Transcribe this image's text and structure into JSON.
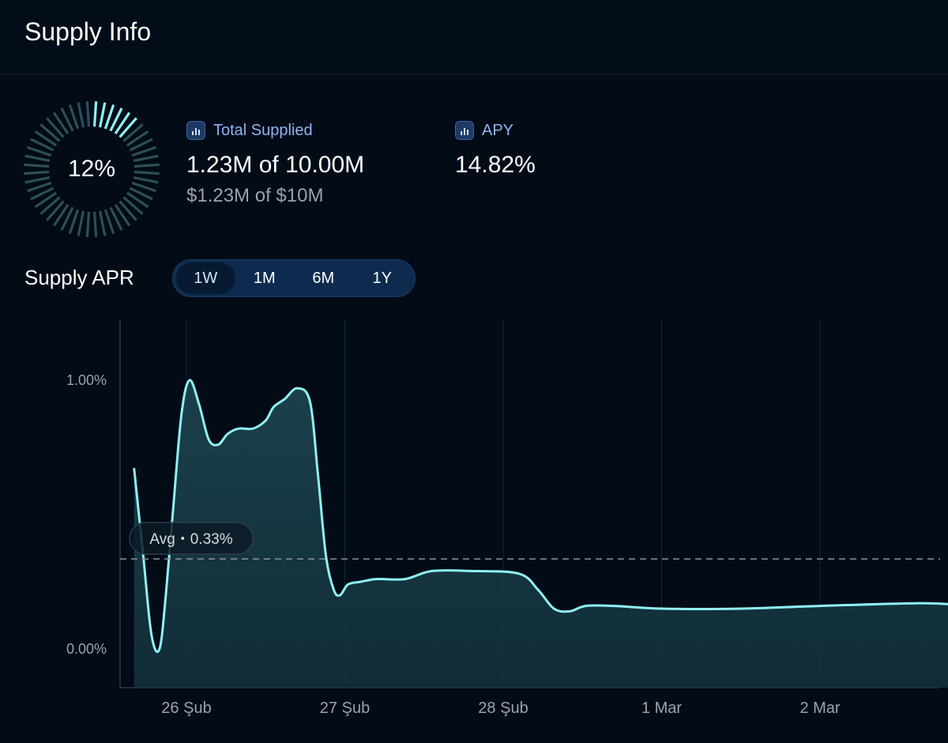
{
  "header": {
    "title": "Supply Info"
  },
  "gauge": {
    "percent_label": "12%",
    "fraction": 0.12,
    "color_active": "#8ff0f5",
    "color_inactive": "#2c4f57"
  },
  "stats": {
    "total_supplied": {
      "label": "Total Supplied",
      "value": "1.23M of 10.00M",
      "sub": "$1.23M of $10M"
    },
    "apy": {
      "label": "APY",
      "value": "14.82%"
    }
  },
  "supply_apr": {
    "title": "Supply APR",
    "tabs": [
      {
        "label": "1W",
        "active": true
      },
      {
        "label": "1M",
        "active": false
      },
      {
        "label": "6M",
        "active": false
      },
      {
        "label": "1Y",
        "active": false
      }
    ]
  },
  "chart_data": {
    "type": "area",
    "x_unit": "day",
    "x_ticks": [
      {
        "label": "26 Şub",
        "x": 0
      },
      {
        "label": "27 Şub",
        "x": 1
      },
      {
        "label": "28 Şub",
        "x": 2
      },
      {
        "label": "1 Mar",
        "x": 3
      },
      {
        "label": "2 Mar",
        "x": 4
      }
    ],
    "xlim": [
      -0.34,
      4.9
    ],
    "y_ticks": [
      {
        "label": "1.00%",
        "value": 1.0
      },
      {
        "label": "0.00%",
        "value": 0.0
      }
    ],
    "ylim": [
      -0.14,
      1.23
    ],
    "x": [
      -0.33,
      -0.27,
      -0.22,
      -0.17,
      -0.13,
      -0.08,
      -0.03,
      0.02,
      0.08,
      0.14,
      0.2,
      0.26,
      0.33,
      0.42,
      0.5,
      0.55,
      0.62,
      0.7,
      0.78,
      0.83,
      0.88,
      0.93,
      0.97,
      1.02,
      1.1,
      1.2,
      1.38,
      1.55,
      1.8,
      2.1,
      2.22,
      2.32,
      2.42,
      2.52,
      2.7,
      3.0,
      3.5,
      4.0,
      4.6,
      4.87
    ],
    "y": [
      0.67,
      0.33,
      0.05,
      0.0,
      0.2,
      0.55,
      0.88,
      1.0,
      0.91,
      0.78,
      0.76,
      0.8,
      0.82,
      0.82,
      0.85,
      0.9,
      0.93,
      0.97,
      0.92,
      0.65,
      0.35,
      0.22,
      0.2,
      0.24,
      0.25,
      0.26,
      0.26,
      0.29,
      0.29,
      0.28,
      0.22,
      0.15,
      0.14,
      0.16,
      0.16,
      0.15,
      0.15,
      0.16,
      0.17,
      0.165
    ],
    "average": {
      "label": "Avg・0.33%",
      "value": 0.335
    },
    "grid": true,
    "colors": {
      "line": "#8ff0f5",
      "fill": "#12303a",
      "grid": "#14263a",
      "avg": "#8a94a0"
    }
  }
}
